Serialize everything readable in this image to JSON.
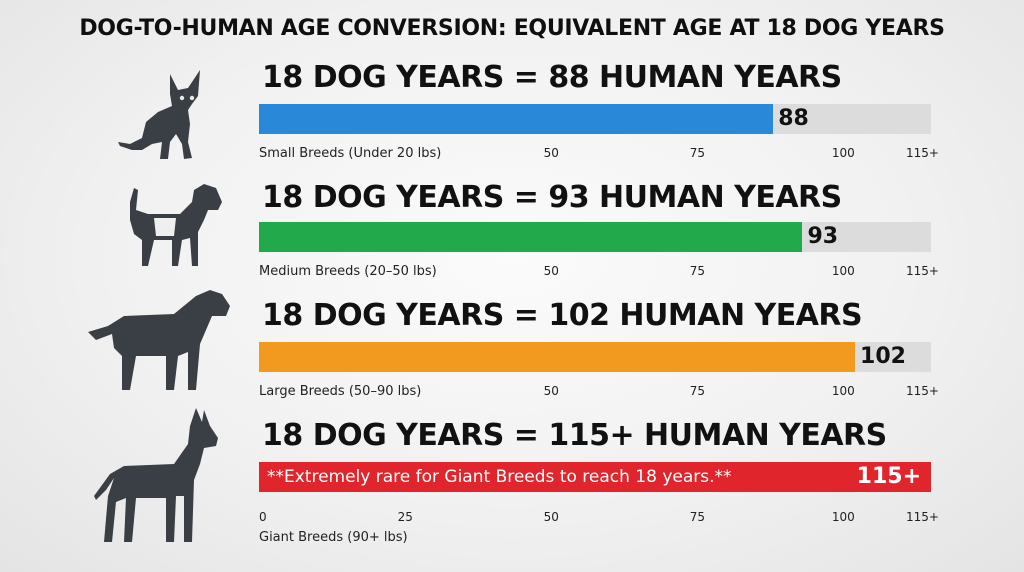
{
  "chart_data": {
    "type": "bar",
    "title": "DOG-TO-HUMAN AGE CONVERSION: EQUIVALENT AGE AT 18 DOG YEARS",
    "xlim": [
      0,
      115
    ],
    "orientation": "horizontal",
    "rows": [
      {
        "heading": "18 DOG YEARS = 88 HUMAN YEARS",
        "category": "Small Breeds (Under 20 lbs)",
        "value": 88,
        "value_label": "88",
        "color": "#2a88d8",
        "ticks": [
          "50",
          "75",
          "100",
          "115+"
        ],
        "tick_values": [
          50,
          75,
          100,
          115
        ]
      },
      {
        "heading": "18 DOG YEARS = 93 HUMAN YEARS",
        "category": "Medium Breeds (20–50 lbs)",
        "value": 93,
        "value_label": "93",
        "color": "#22a94c",
        "ticks": [
          "50",
          "75",
          "100",
          "115+"
        ],
        "tick_values": [
          50,
          75,
          100,
          115
        ]
      },
      {
        "heading": "18 DOG YEARS = 102 HUMAN YEARS",
        "category": "Large Breeds (50–90 lbs)",
        "value": 102,
        "value_label": "102",
        "color": "#f29a1f",
        "ticks": [
          "50",
          "75",
          "100",
          "115+"
        ],
        "tick_values": [
          50,
          75,
          100,
          115
        ]
      },
      {
        "heading": "18 DOG YEARS = 115+ HUMAN YEARS",
        "category": "Giant Breeds (90+ lbs)",
        "value": 115,
        "value_label": "115+",
        "color": "#e0262c",
        "note": "**Extremely rare for Giant Breeds to reach 18 years.**",
        "ticks": [
          "0",
          "25",
          "50",
          "75",
          "100",
          "115+"
        ],
        "tick_values": [
          0,
          25,
          50,
          75,
          100,
          115
        ]
      }
    ]
  },
  "icons": [
    "chihuahua-icon",
    "beagle-icon",
    "labrador-icon",
    "great-dane-icon"
  ]
}
